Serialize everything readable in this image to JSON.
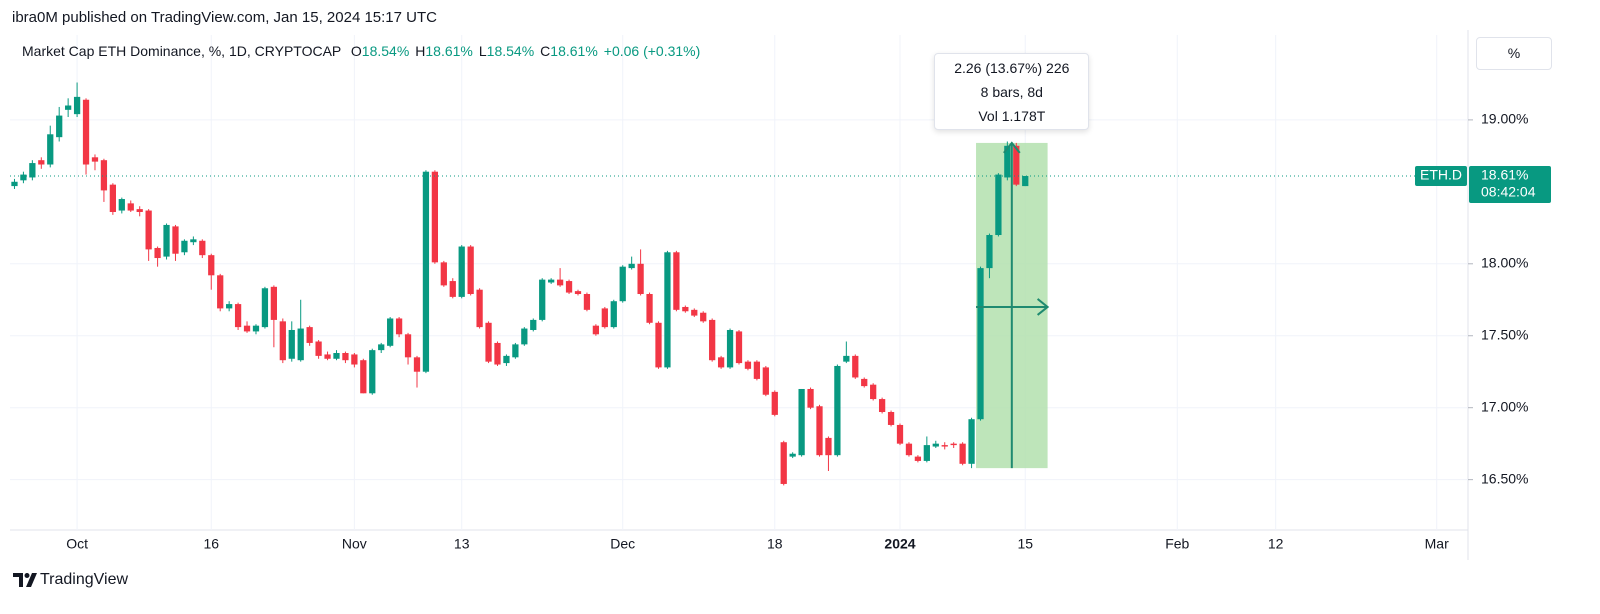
{
  "header": {
    "title": "ibra0M published on TradingView.com, Jan 15, 2024 15:17 UTC"
  },
  "chart_data": {
    "type": "candlestick",
    "title": "Market Cap ETH Dominance, %, 1D, CRYPTOCAP",
    "readout": {
      "items": [
        {
          "key": "O",
          "text": "18.54%"
        },
        {
          "key": "H",
          "text": "18.61%"
        },
        {
          "key": "L",
          "text": "18.54%"
        },
        {
          "key": "C",
          "text": "18.61%"
        }
      ],
      "change": "+0.06 (+0.31%)"
    },
    "categories": [
      null,
      null,
      null,
      null,
      null,
      null,
      null,
      "Oct",
      null,
      null,
      null,
      null,
      null,
      null,
      null,
      null,
      null,
      null,
      null,
      null,
      null,
      null,
      "16",
      null,
      null,
      null,
      null,
      null,
      null,
      null,
      null,
      null,
      null,
      null,
      null,
      null,
      null,
      null,
      "Nov",
      null,
      null,
      null,
      null,
      null,
      null,
      null,
      null,
      null,
      null,
      null,
      "13",
      null,
      null,
      null,
      null,
      null,
      null,
      null,
      null,
      null,
      null,
      null,
      null,
      null,
      null,
      null,
      null,
      null,
      "Dec",
      null,
      null,
      null,
      null,
      null,
      null,
      null,
      null,
      null,
      null,
      null,
      null,
      null,
      null,
      null,
      null,
      "18",
      null,
      null,
      null,
      null,
      null,
      null,
      null,
      null,
      null,
      null,
      null,
      null,
      null,
      "2024",
      null,
      null,
      null,
      null,
      null,
      null,
      null,
      null,
      null,
      null,
      null,
      null,
      null,
      "15",
      null,
      null,
      null,
      null,
      null,
      null,
      null,
      null,
      null,
      null,
      null,
      null,
      null,
      null,
      null,
      null,
      "Feb",
      null,
      null,
      null,
      null,
      null,
      null,
      null,
      null,
      null,
      null,
      "12",
      null,
      null,
      null,
      null,
      null,
      null,
      null,
      null,
      null,
      null,
      null,
      null,
      null,
      null,
      null,
      null,
      null,
      "Mar",
      null,
      null,
      null
    ],
    "series": [
      {
        "name": "ETH.D",
        "up_color": "#089981",
        "down_color": "#f23645",
        "ohlc": [
          [
            18.54,
            18.59,
            18.52,
            18.57
          ],
          [
            18.58,
            18.64,
            18.56,
            18.62
          ],
          [
            18.6,
            18.72,
            18.58,
            18.7
          ],
          [
            18.72,
            18.74,
            18.66,
            18.69
          ],
          [
            18.69,
            18.96,
            18.67,
            18.9
          ],
          [
            18.88,
            19.09,
            18.85,
            19.03
          ],
          [
            19.07,
            19.15,
            19.02,
            19.1
          ],
          [
            19.04,
            19.26,
            19.02,
            19.16
          ],
          [
            19.14,
            19.15,
            18.62,
            18.69
          ],
          [
            18.74,
            18.76,
            18.65,
            18.71
          ],
          [
            18.72,
            18.73,
            18.43,
            18.51
          ],
          [
            18.55,
            18.56,
            18.34,
            18.36
          ],
          [
            18.37,
            18.46,
            18.35,
            18.45
          ],
          [
            18.42,
            18.44,
            18.36,
            18.37
          ],
          [
            18.38,
            18.4,
            18.33,
            18.36
          ],
          [
            18.37,
            18.38,
            18.02,
            18.1
          ],
          [
            18.11,
            18.12,
            17.98,
            18.04
          ],
          [
            18.05,
            18.28,
            18.03,
            18.27
          ],
          [
            18.26,
            18.27,
            18.02,
            18.07
          ],
          [
            18.08,
            18.17,
            18.06,
            18.16
          ],
          [
            18.15,
            18.19,
            18.13,
            18.17
          ],
          [
            18.16,
            18.17,
            18.04,
            18.06
          ],
          [
            18.06,
            18.07,
            17.82,
            17.92
          ],
          [
            17.92,
            17.93,
            17.67,
            17.69
          ],
          [
            17.69,
            17.74,
            17.67,
            17.72
          ],
          [
            17.72,
            17.73,
            17.54,
            17.56
          ],
          [
            17.57,
            17.6,
            17.52,
            17.53
          ],
          [
            17.53,
            17.58,
            17.51,
            17.57
          ],
          [
            17.56,
            17.84,
            17.55,
            17.83
          ],
          [
            17.84,
            17.85,
            17.42,
            17.61
          ],
          [
            17.6,
            17.62,
            17.31,
            17.33
          ],
          [
            17.34,
            17.6,
            17.32,
            17.54
          ],
          [
            17.33,
            17.75,
            17.32,
            17.55
          ],
          [
            17.56,
            17.57,
            17.43,
            17.45
          ],
          [
            17.46,
            17.47,
            17.34,
            17.36
          ],
          [
            17.37,
            17.39,
            17.33,
            17.34
          ],
          [
            17.34,
            17.4,
            17.33,
            17.38
          ],
          [
            17.38,
            17.39,
            17.31,
            17.33
          ],
          [
            17.37,
            17.38,
            17.28,
            17.3
          ],
          [
            17.33,
            17.34,
            17.1,
            17.1
          ],
          [
            17.1,
            17.41,
            17.09,
            17.4
          ],
          [
            17.4,
            17.45,
            17.38,
            17.44
          ],
          [
            17.43,
            17.63,
            17.42,
            17.62
          ],
          [
            17.62,
            17.63,
            17.49,
            17.51
          ],
          [
            17.51,
            17.52,
            17.3,
            17.35
          ],
          [
            17.35,
            17.36,
            17.14,
            17.25
          ],
          [
            17.25,
            18.65,
            17.24,
            18.64
          ],
          [
            18.64,
            18.65,
            18.0,
            18.01
          ],
          [
            18.01,
            18.02,
            17.84,
            17.85
          ],
          [
            17.88,
            17.9,
            17.76,
            17.77
          ],
          [
            17.77,
            18.13,
            17.76,
            18.12
          ],
          [
            18.12,
            18.13,
            17.78,
            17.79
          ],
          [
            17.82,
            17.83,
            17.55,
            17.56
          ],
          [
            17.59,
            17.6,
            17.31,
            17.32
          ],
          [
            17.45,
            17.46,
            17.29,
            17.3
          ],
          [
            17.31,
            17.37,
            17.29,
            17.36
          ],
          [
            17.35,
            17.45,
            17.34,
            17.44
          ],
          [
            17.44,
            17.56,
            17.43,
            17.55
          ],
          [
            17.54,
            17.62,
            17.53,
            17.61
          ],
          [
            17.61,
            17.9,
            17.6,
            17.89
          ],
          [
            17.87,
            17.9,
            17.86,
            17.89
          ],
          [
            17.89,
            17.97,
            17.84,
            17.85
          ],
          [
            17.88,
            17.89,
            17.79,
            17.8
          ],
          [
            17.81,
            17.82,
            17.78,
            17.79
          ],
          [
            17.79,
            17.8,
            17.67,
            17.68
          ],
          [
            17.57,
            17.58,
            17.5,
            17.51
          ],
          [
            17.69,
            17.7,
            17.55,
            17.56
          ],
          [
            17.56,
            17.75,
            17.55,
            17.74
          ],
          [
            17.74,
            17.99,
            17.73,
            17.98
          ],
          [
            17.97,
            18.05,
            17.96,
            18.0
          ],
          [
            18.0,
            18.1,
            17.78,
            17.79
          ],
          [
            17.79,
            17.8,
            17.58,
            17.59
          ],
          [
            17.59,
            17.6,
            17.27,
            17.28
          ],
          [
            17.28,
            18.09,
            17.27,
            18.08
          ],
          [
            18.08,
            18.09,
            17.67,
            17.68
          ],
          [
            17.7,
            17.71,
            17.66,
            17.67
          ],
          [
            17.68,
            17.69,
            17.63,
            17.64
          ],
          [
            17.66,
            17.67,
            17.59,
            17.6
          ],
          [
            17.61,
            17.62,
            17.32,
            17.33
          ],
          [
            17.35,
            17.36,
            17.27,
            17.28
          ],
          [
            17.28,
            17.55,
            17.27,
            17.54
          ],
          [
            17.53,
            17.54,
            17.3,
            17.31
          ],
          [
            17.32,
            17.33,
            17.26,
            17.27
          ],
          [
            17.32,
            17.33,
            17.19,
            17.2
          ],
          [
            17.28,
            17.29,
            17.08,
            17.09
          ],
          [
            17.11,
            17.12,
            16.94,
            16.95
          ],
          [
            16.76,
            16.77,
            16.46,
            16.47
          ],
          [
            16.66,
            16.69,
            16.65,
            16.68
          ],
          [
            16.67,
            17.13,
            16.66,
            17.13
          ],
          [
            17.13,
            17.14,
            16.99,
            17.0
          ],
          [
            17.01,
            17.02,
            16.66,
            16.67
          ],
          [
            16.79,
            16.8,
            16.56,
            16.67
          ],
          [
            16.67,
            17.3,
            16.66,
            17.29
          ],
          [
            17.32,
            17.46,
            17.31,
            17.36
          ],
          [
            17.36,
            17.37,
            17.2,
            17.21
          ],
          [
            17.2,
            17.21,
            17.14,
            17.15
          ],
          [
            17.16,
            17.17,
            17.05,
            17.06
          ],
          [
            17.06,
            17.07,
            16.96,
            16.97
          ],
          [
            16.97,
            16.98,
            16.87,
            16.88
          ],
          [
            16.88,
            16.89,
            16.74,
            16.75
          ],
          [
            16.75,
            16.76,
            16.66,
            16.67
          ],
          [
            16.66,
            16.67,
            16.62,
            16.63
          ],
          [
            16.63,
            16.8,
            16.62,
            16.74
          ],
          [
            16.73,
            16.77,
            16.72,
            16.75
          ],
          [
            16.74,
            16.76,
            16.71,
            16.73
          ],
          [
            16.75,
            16.76,
            16.72,
            16.74
          ],
          [
            16.75,
            16.76,
            16.6,
            16.61
          ],
          [
            16.61,
            16.93,
            16.58,
            16.92
          ],
          [
            16.92,
            17.98,
            16.91,
            17.97
          ],
          [
            17.97,
            18.21,
            17.9,
            18.2
          ],
          [
            18.2,
            18.63,
            18.19,
            18.62
          ],
          [
            18.6,
            18.85,
            18.58,
            18.82
          ],
          [
            18.82,
            18.84,
            18.54,
            18.55
          ],
          [
            18.54,
            18.61,
            18.54,
            18.61
          ],
          null,
          null,
          null,
          null,
          null,
          null,
          null,
          null,
          null,
          null,
          null,
          null,
          null,
          null,
          null,
          null,
          null,
          null,
          null,
          null,
          null,
          null,
          null,
          null,
          null,
          null,
          null,
          null,
          null,
          null,
          null,
          null,
          null,
          null,
          null,
          null,
          null,
          null,
          null,
          null,
          null,
          null,
          null,
          null,
          null,
          null,
          null,
          null,
          null
        ]
      }
    ],
    "ylim": [
      16.15,
      19.59
    ],
    "yticks": [
      {
        "value": 16.5,
        "label": "16.50%"
      },
      {
        "value": 17,
        "label": "17.00%"
      },
      {
        "value": 17.5,
        "label": "17.50%"
      },
      {
        "value": 18,
        "label": "18.00%"
      },
      {
        "value": 19,
        "label": "19.00%"
      }
    ],
    "y_unit": "%",
    "grid": true,
    "last_price": {
      "value": 18.61,
      "label": "18.61%",
      "countdown": "08:42:04"
    },
    "measure": {
      "top": 18.84,
      "bottom": 16.58,
      "color": "#b3e0ae",
      "arrow_color": "#1f8a70",
      "lines": [
        "2.26 (13.67%) 226",
        "8 bars, 8d",
        "Vol 1.178T"
      ]
    }
  },
  "footer": {
    "brand": "TradingView"
  }
}
